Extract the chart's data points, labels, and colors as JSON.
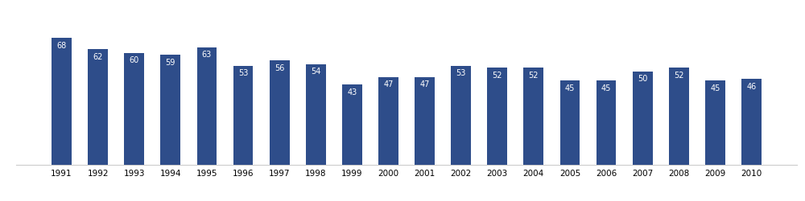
{
  "years": [
    1991,
    1992,
    1993,
    1994,
    1995,
    1996,
    1997,
    1998,
    1999,
    2000,
    2001,
    2002,
    2003,
    2004,
    2005,
    2006,
    2007,
    2008,
    2009,
    2010
  ],
  "values": [
    68,
    62,
    60,
    59,
    63,
    53,
    56,
    54,
    43,
    47,
    47,
    53,
    52,
    52,
    45,
    45,
    50,
    52,
    45,
    46
  ],
  "bar_color": "#2E4D8A",
  "label_color": "#FFFFFF",
  "label_fontsize": 7,
  "tick_fontsize": 7.5,
  "background_color": "#FFFFFF",
  "ylim": [
    0,
    85
  ],
  "bar_width": 0.55
}
